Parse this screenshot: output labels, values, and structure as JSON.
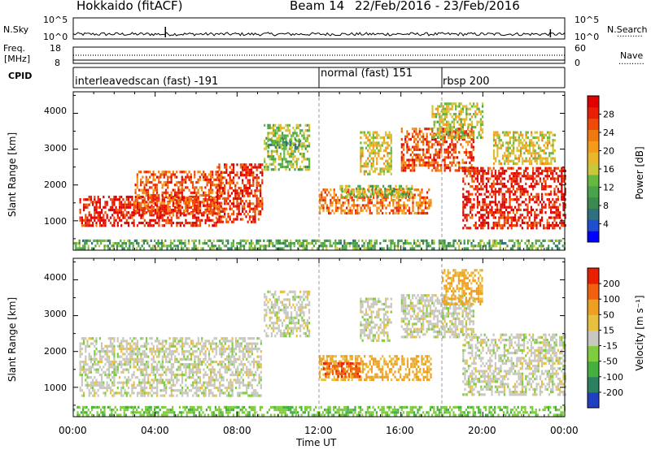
{
  "header": {
    "station": "Hokkaido (fitACF)",
    "beam": "Beam 14",
    "date_range": "22/Feb/2016 - 23/Feb/2016"
  },
  "status_panel": {
    "nsky_label": "N.Sky",
    "nsky_ticks": [
      "10^5",
      "10^0"
    ],
    "nsearch_label": "N.Search",
    "nsearch_ticks": [
      "10^5",
      "10^0"
    ],
    "freq_label": "Freq.",
    "freq_unit": "[MHz]",
    "freq_ticks": [
      "18",
      "8"
    ],
    "nave_label": "Nave",
    "nave_ticks": [
      "60",
      "0"
    ],
    "cpid_label": "CPID",
    "cpid_segments": [
      {
        "label": "interleavedscan (fast) -191",
        "start_hour": 0
      },
      {
        "label": "normal (fast) 151",
        "start_hour": 12
      },
      {
        "label": "rbsp 200",
        "start_hour": 18
      }
    ]
  },
  "chart_data": [
    {
      "type": "heatmap",
      "name": "Power",
      "ylabel": "Slant Range [km]",
      "xlabel": "Time UT",
      "xlim": [
        0,
        24
      ],
      "ylim": [
        180,
        4600
      ],
      "yticks": [
        "1000",
        "2000",
        "3000",
        "4000"
      ],
      "xticks": [
        "00:00",
        "04:00",
        "08:00",
        "12:00",
        "16:00",
        "20:00",
        "00:00"
      ],
      "colorbar": {
        "label": "Power [dB]",
        "ticks": [
          "28",
          "24",
          "20",
          "16",
          "12",
          "8",
          "4"
        ],
        "colors": [
          "#0000ff",
          "#1f4fd0",
          "#2f6f7f",
          "#3c8a50",
          "#4aa34a",
          "#66b840",
          "#c8c83a",
          "#e8b82a",
          "#f59a1a",
          "#f07a10",
          "#ee4a08",
          "#e81e05",
          "#e00000"
        ]
      },
      "regions": [
        {
          "t0": 0.3,
          "t1": 7.0,
          "r0": 850,
          "r1": 1700,
          "level": 0.95
        },
        {
          "t0": 3.0,
          "t1": 7.2,
          "r0": 1200,
          "r1": 2400,
          "level": 0.8
        },
        {
          "t0": 7.0,
          "t1": 9.2,
          "r0": 1000,
          "r1": 2600,
          "level": 0.9
        },
        {
          "t0": 9.3,
          "t1": 11.5,
          "r0": 2400,
          "r1": 3700,
          "level": 0.45
        },
        {
          "t0": 9.5,
          "t1": 11.0,
          "r0": 3050,
          "r1": 3300,
          "level": 0.3
        },
        {
          "t0": 12.0,
          "t1": 17.5,
          "r0": 1200,
          "r1": 1900,
          "level": 0.75
        },
        {
          "t0": 13.0,
          "t1": 16.5,
          "r0": 1700,
          "r1": 2000,
          "level": 0.45
        },
        {
          "t0": 14.0,
          "t1": 15.5,
          "r0": 2300,
          "r1": 3500,
          "level": 0.55
        },
        {
          "t0": 16.0,
          "t1": 19.5,
          "r0": 2400,
          "r1": 3600,
          "level": 0.85
        },
        {
          "t0": 19.0,
          "t1": 24.0,
          "r0": 800,
          "r1": 2500,
          "level": 0.95
        },
        {
          "t0": 17.5,
          "t1": 20.0,
          "r0": 3300,
          "r1": 4300,
          "level": 0.5
        },
        {
          "t0": 20.5,
          "t1": 23.5,
          "r0": 2600,
          "r1": 3500,
          "level": 0.55
        },
        {
          "t0": 0.0,
          "t1": 24.0,
          "r0": 250,
          "r1": 480,
          "level": 0.35
        }
      ]
    },
    {
      "type": "heatmap",
      "name": "Velocity",
      "ylabel": "Slant Range [km]",
      "xlabel": "Time UT",
      "xlim": [
        0,
        24
      ],
      "ylim": [
        180,
        4600
      ],
      "yticks": [
        "1000",
        "2000",
        "3000",
        "4000"
      ],
      "xticks": [
        "00:00",
        "04:00",
        "08:00",
        "12:00",
        "16:00",
        "20:00",
        "00:00"
      ],
      "colorbar": {
        "label": "Velocity [m s⁻¹]",
        "ticks": [
          "200",
          "100",
          "50",
          "15",
          "-15",
          "-50",
          "-100",
          "-200"
        ],
        "colors": [
          "#2040c0",
          "#2a8060",
          "#44b040",
          "#80cc40",
          "#c8c8c0",
          "#e8c040",
          "#f0a020",
          "#f06010",
          "#e82000"
        ]
      },
      "regions": [
        {
          "t0": 0.3,
          "t1": 9.2,
          "r0": 800,
          "r1": 2400,
          "level": 0.5
        },
        {
          "t0": 9.3,
          "t1": 11.5,
          "r0": 2400,
          "r1": 3700,
          "level": 0.5
        },
        {
          "t0": 12.0,
          "t1": 17.5,
          "r0": 1200,
          "r1": 1900,
          "level": 0.72
        },
        {
          "t0": 12.2,
          "t1": 14.0,
          "r0": 1300,
          "r1": 1700,
          "level": 0.9
        },
        {
          "t0": 14.0,
          "t1": 15.5,
          "r0": 2300,
          "r1": 3500,
          "level": 0.5
        },
        {
          "t0": 16.0,
          "t1": 19.5,
          "r0": 2400,
          "r1": 3600,
          "level": 0.5
        },
        {
          "t0": 19.0,
          "t1": 24.0,
          "r0": 800,
          "r1": 2500,
          "level": 0.5
        },
        {
          "t0": 18.0,
          "t1": 20.0,
          "r0": 3300,
          "r1": 4300,
          "level": 0.72
        },
        {
          "t0": 0.0,
          "t1": 24.0,
          "r0": 250,
          "r1": 480,
          "level": 0.35
        }
      ]
    }
  ],
  "annotations": {
    "minor_tick_marks": ".........."
  }
}
